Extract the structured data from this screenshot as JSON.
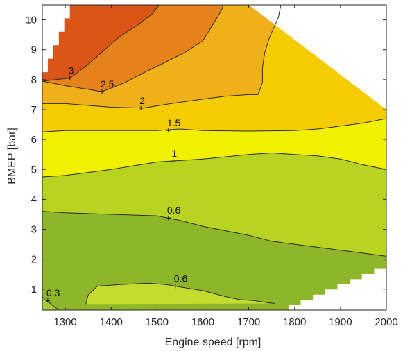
{
  "chart_data": {
    "type": "contour",
    "xlabel": "Engine speed [rpm]",
    "ylabel": "BMEP [bar]",
    "xlim": [
      1250,
      2000
    ],
    "ylim": [
      0.3,
      10.5
    ],
    "xticks": [
      1300,
      1400,
      1500,
      1600,
      1700,
      1800,
      1900,
      2000
    ],
    "yticks": [
      1,
      2,
      3,
      4,
      5,
      6,
      7,
      8,
      9,
      10
    ],
    "grid": false,
    "colors": {
      "lt_0.3": "#a8c93a",
      "0.3_0.6": "#c4dc2e",
      "0.6_low": "#8eb62a",
      "0.6_1": "#b8d421",
      "1_1.5": "#f0f000",
      "1.5_2": "#f5cc00",
      "2_2.5": "#efb01a",
      "2.5_3": "#e5821a",
      "gt_3": "#dc5518"
    },
    "contour_lines": [
      {
        "level": "0.3",
        "points": [
          [
            1250,
            0.75
          ],
          [
            1255,
            0.65
          ],
          [
            1265,
            0.55
          ],
          [
            1275,
            0.42
          ],
          [
            1285,
            0.32
          ]
        ]
      },
      {
        "level": "0.6",
        "points": [
          [
            1345,
            0.5
          ],
          [
            1350,
            0.8
          ],
          [
            1370,
            1.1
          ],
          [
            1420,
            1.15
          ],
          [
            1480,
            1.2
          ],
          [
            1520,
            1.15
          ],
          [
            1540,
            1.1
          ],
          [
            1600,
            0.95
          ],
          [
            1650,
            0.75
          ],
          [
            1680,
            0.65
          ],
          [
            1710,
            0.62
          ],
          [
            1740,
            0.55
          ],
          [
            1758,
            0.52
          ]
        ]
      },
      {
        "level": "0.6",
        "points": [
          [
            1250,
            3.6
          ],
          [
            1300,
            3.55
          ],
          [
            1400,
            3.5
          ],
          [
            1500,
            3.45
          ],
          [
            1550,
            3.3
          ],
          [
            1600,
            3.1
          ],
          [
            1650,
            2.95
          ],
          [
            1700,
            2.8
          ],
          [
            1750,
            2.6
          ],
          [
            1800,
            2.5
          ],
          [
            1850,
            2.4
          ],
          [
            1900,
            2.3
          ],
          [
            1950,
            2.2
          ],
          [
            2000,
            2.1
          ]
        ]
      },
      {
        "level": "1",
        "points": [
          [
            1250,
            4.75
          ],
          [
            1300,
            4.8
          ],
          [
            1400,
            5.0
          ],
          [
            1500,
            5.25
          ],
          [
            1600,
            5.35
          ],
          [
            1700,
            5.5
          ],
          [
            1750,
            5.55
          ],
          [
            1800,
            5.5
          ],
          [
            1850,
            5.45
          ],
          [
            1900,
            5.35
          ],
          [
            1950,
            5.15
          ],
          [
            2000,
            5.0
          ]
        ]
      },
      {
        "level": "1.5",
        "points": [
          [
            1250,
            6.25
          ],
          [
            1300,
            6.3
          ],
          [
            1400,
            6.3
          ],
          [
            1500,
            6.3
          ],
          [
            1550,
            6.35
          ],
          [
            1600,
            6.3
          ],
          [
            1700,
            6.28
          ],
          [
            1800,
            6.3
          ],
          [
            1850,
            6.35
          ],
          [
            1900,
            6.45
          ],
          [
            1950,
            6.55
          ],
          [
            2000,
            6.7
          ]
        ]
      },
      {
        "level": "2",
        "points": [
          [
            1250,
            7.2
          ],
          [
            1300,
            7.2
          ],
          [
            1400,
            7.08
          ],
          [
            1470,
            7.05
          ],
          [
            1530,
            7.2
          ],
          [
            1600,
            7.35
          ],
          [
            1650,
            7.45
          ],
          [
            1700,
            7.5
          ],
          [
            1720,
            7.5
          ],
          [
            1730,
            7.9
          ],
          [
            1730,
            8.4
          ],
          [
            1735,
            8.9
          ],
          [
            1745,
            9.4
          ],
          [
            1765,
            10.1
          ],
          [
            1770,
            10.5
          ]
        ]
      },
      {
        "level": "2.5",
        "points": [
          [
            1250,
            7.95
          ],
          [
            1300,
            7.8
          ],
          [
            1380,
            7.6
          ],
          [
            1430,
            7.9
          ],
          [
            1480,
            8.3
          ],
          [
            1520,
            8.6
          ],
          [
            1560,
            8.9
          ],
          [
            1600,
            9.3
          ],
          [
            1620,
            9.8
          ],
          [
            1640,
            10.3
          ],
          [
            1645,
            10.5
          ]
        ]
      },
      {
        "level": "3",
        "points": [
          [
            1250,
            7.95
          ],
          [
            1280,
            8.0
          ],
          [
            1310,
            8.05
          ],
          [
            1345,
            8.45
          ],
          [
            1375,
            8.85
          ],
          [
            1400,
            9.2
          ],
          [
            1420,
            9.45
          ],
          [
            1460,
            9.85
          ],
          [
            1490,
            10.2
          ],
          [
            1505,
            10.5
          ]
        ]
      }
    ],
    "contour_labels": [
      {
        "text": "0.3",
        "x": 1262,
        "y": 0.62
      },
      {
        "text": "0.6",
        "x": 1540,
        "y": 1.1
      },
      {
        "text": "0.6",
        "x": 1525,
        "y": 3.38
      },
      {
        "text": "1",
        "x": 1535,
        "y": 5.28
      },
      {
        "text": "1.5",
        "x": 1525,
        "y": 6.3
      },
      {
        "text": "2",
        "x": 1465,
        "y": 7.05
      },
      {
        "text": "2.5",
        "x": 1380,
        "y": 7.6
      },
      {
        "text": "3",
        "x": 1310,
        "y": 8.05
      }
    ]
  }
}
